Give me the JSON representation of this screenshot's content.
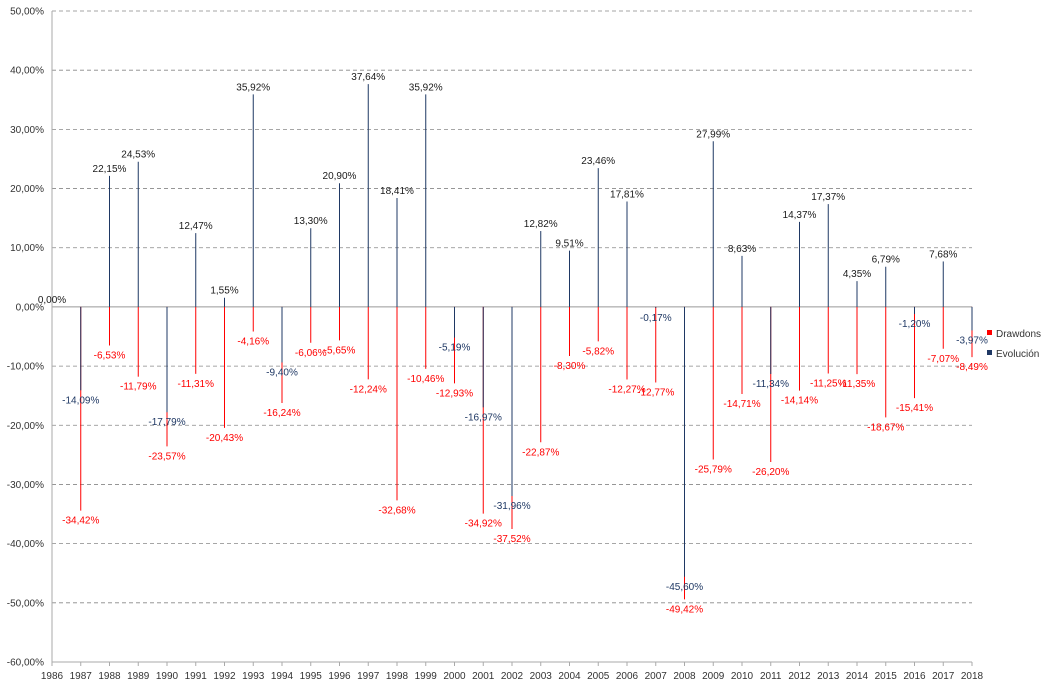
{
  "chart_data": {
    "type": "bar",
    "title": "",
    "xlabel": "",
    "ylabel": "",
    "ylim": [
      -60,
      50
    ],
    "yticks": [
      50,
      40,
      30,
      20,
      10,
      0,
      -10,
      -20,
      -30,
      -40,
      -50,
      -60
    ],
    "ytick_labels": [
      "50,00%",
      "40,00%",
      "30,00%",
      "20,00%",
      "10,00%",
      "0,00%",
      "-10,00%",
      "-20,00%",
      "-30,00%",
      "-40,00%",
      "-50,00%",
      "-60,00%"
    ],
    "grid": true,
    "legend_position": "right",
    "colors": {
      "drawdowns": "#ff0000",
      "evolucion": "#1f3864",
      "grid": "#888888",
      "axis": "#aaaaaa"
    },
    "categories": [
      "1986",
      "1987",
      "1988",
      "1989",
      "1990",
      "1991",
      "1992",
      "1993",
      "1994",
      "1995",
      "1996",
      "1997",
      "1998",
      "1999",
      "2000",
      "2001",
      "2002",
      "2003",
      "2004",
      "2005",
      "2006",
      "2007",
      "2008",
      "2009",
      "2010",
      "2011",
      "2012",
      "2013",
      "2014",
      "2015",
      "2016",
      "2017",
      "2018"
    ],
    "series": [
      {
        "name": "Drawdons",
        "color": "#ff0000",
        "values": [
          null,
          -34.42,
          -6.53,
          -11.79,
          -23.57,
          -11.31,
          -20.43,
          -4.16,
          -16.24,
          -6.06,
          -5.65,
          -12.24,
          -32.68,
          -10.46,
          -12.93,
          -34.92,
          -37.52,
          -22.87,
          -8.3,
          -5.82,
          -12.27,
          -12.77,
          -49.42,
          -25.79,
          -14.71,
          -26.2,
          -14.14,
          -11.25,
          -11.35,
          -18.67,
          -15.41,
          -7.07,
          -8.49
        ],
        "labels": [
          "",
          "-34,42%",
          "-6,53%",
          "-11,79%",
          "-23,57%",
          "-11,31%",
          "-20,43%",
          "-4,16%",
          "-16,24%",
          "-6,06%",
          "-5,65%",
          "-12,24%",
          "-32,68%",
          "-10,46%",
          "-12,93%",
          "-34,92%",
          "-37,52%",
          "-22,87%",
          "-8,30%",
          "-5,82%",
          "-12,27%",
          "-12,77%",
          "-49,42%",
          "-25,79%",
          "-14,71%",
          "-26,20%",
          "-14,14%",
          "-11,25%",
          "-11,35%",
          "-18,67%",
          "-15,41%",
          "-7,07%",
          "-8,49%"
        ]
      },
      {
        "name": "Evolución",
        "color": "#1f3864",
        "values": [
          0.0,
          -14.09,
          22.15,
          24.53,
          -17.79,
          12.47,
          1.55,
          35.92,
          -9.4,
          13.3,
          20.9,
          37.64,
          18.41,
          35.92,
          -5.19,
          -16.97,
          -31.96,
          12.82,
          9.51,
          23.46,
          17.81,
          -0.17,
          -45.6,
          27.99,
          8.63,
          -11.34,
          14.37,
          17.37,
          4.35,
          6.79,
          -1.2,
          7.68,
          -3.97
        ],
        "labels": [
          "0,00%",
          "-14,09%",
          "22,15%",
          "24,53%",
          "-17,79%",
          "12,47%",
          "1,55%",
          "35,92%",
          "-9,40%",
          "13,30%",
          "20,90%",
          "37,64%",
          "18,41%",
          "35,92%",
          "-5,19%",
          "-16,97%",
          "-31,96%",
          "12,82%",
          "9,51%",
          "23,46%",
          "17,81%",
          "-0,17%",
          "-45,60%",
          "27,99%",
          "8,63%",
          "-11,34%",
          "14,37%",
          "17,37%",
          "4,35%",
          "6,79%",
          "-1,20%",
          "7,68%",
          "-3,97%"
        ]
      }
    ]
  }
}
